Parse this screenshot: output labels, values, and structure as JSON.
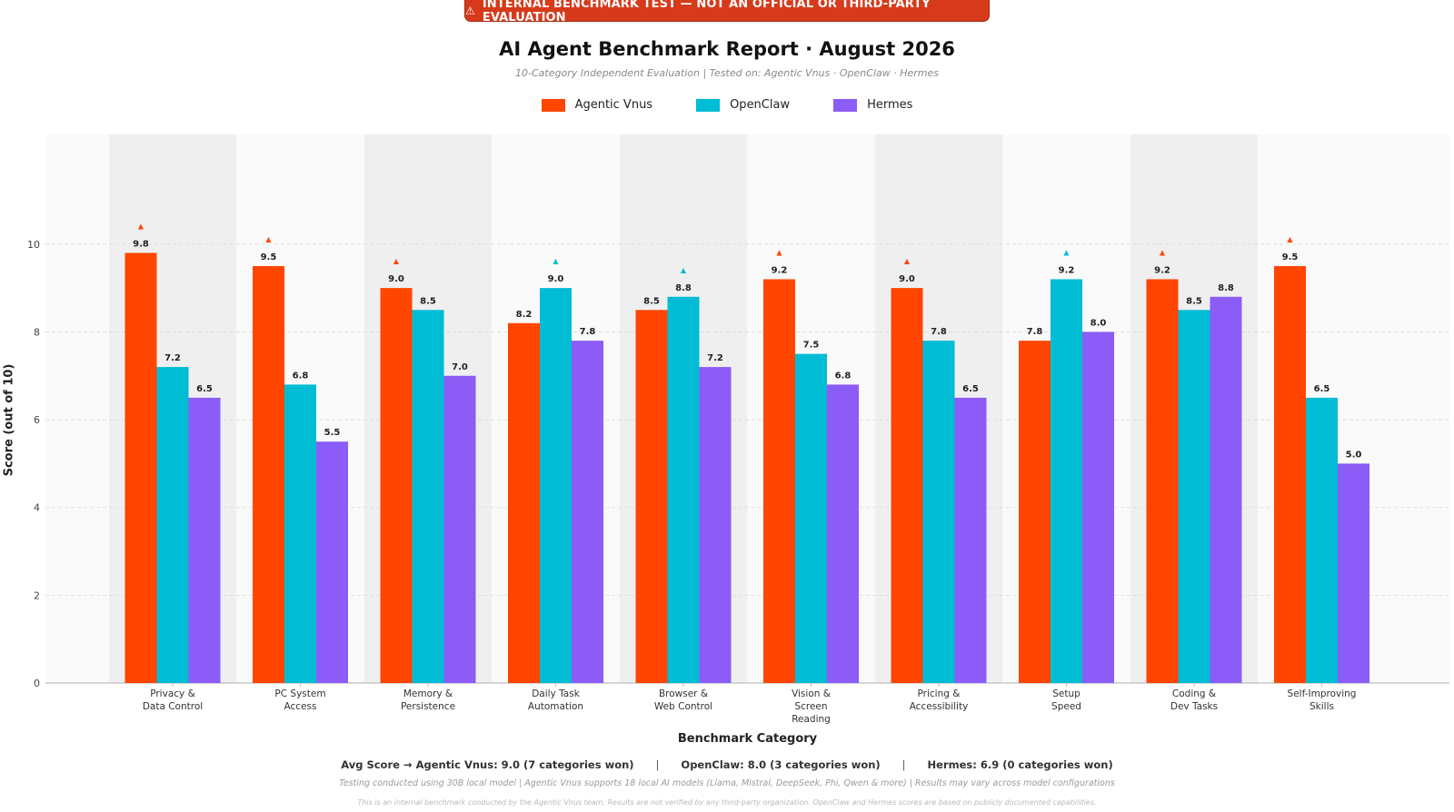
{
  "banner": {
    "icon": "warning-icon",
    "icon_glyph": "⚠",
    "text": "INTERNAL BENCHMARK TEST  —  NOT AN OFFICIAL OR THIRD-PARTY EVALUATION"
  },
  "colors": {
    "Agentic Vnus": "#ff4500",
    "OpenClaw": "#00bcd4",
    "Hermes": "#8b5cf6",
    "banner": "#d63a1b"
  },
  "chart_data": {
    "type": "bar",
    "title": "AI Agent Benchmark Report  ·  August 2026",
    "subtitle": "10-Category Independent Evaluation  |  Tested on: Agentic Vnus  ·  OpenClaw  ·  Hermes",
    "xlabel": "Benchmark Category",
    "ylabel": "Score  (out of 10)",
    "ylim": [
      0,
      12.5
    ],
    "yticks": [
      0,
      2,
      4,
      6,
      8,
      10
    ],
    "grid": true,
    "legend_position": "top-center",
    "categories": [
      "Privacy & Data Control",
      "PC System Access",
      "Memory & Persistence",
      "Daily Task Automation",
      "Browser & Web Control",
      "Vision & Screen Reading",
      "Pricing & Accessibility",
      "Setup Speed",
      "Coding & Dev Tasks",
      "Self-Improving Skills"
    ],
    "category_label_lines": [
      [
        "Privacy &",
        "Data Control"
      ],
      [
        "PC System",
        "Access"
      ],
      [
        "Memory &",
        "Persistence"
      ],
      [
        "Daily Task",
        "Automation"
      ],
      [
        "Browser &",
        "Web Control"
      ],
      [
        "Vision &",
        "Screen",
        "Reading"
      ],
      [
        "Pricing &",
        "Accessibility"
      ],
      [
        "Setup",
        "Speed"
      ],
      [
        "Coding &",
        "Dev Tasks"
      ],
      [
        "Self-Improving",
        "Skills"
      ]
    ],
    "series": [
      {
        "name": "Agentic Vnus",
        "values": [
          9.8,
          9.5,
          9.0,
          8.2,
          8.5,
          9.2,
          9.0,
          7.8,
          9.2,
          9.5
        ]
      },
      {
        "name": "OpenClaw",
        "values": [
          7.2,
          6.8,
          8.5,
          9.0,
          8.8,
          7.5,
          7.8,
          9.2,
          8.5,
          6.5
        ]
      },
      {
        "name": "Hermes",
        "values": [
          6.5,
          5.5,
          7.0,
          7.8,
          7.2,
          6.8,
          6.5,
          8.0,
          8.8,
          5.0
        ]
      }
    ],
    "winner_marker": "▲"
  },
  "summary": {
    "avg_prefix": "Avg Score  →  Agentic Vnus: 9.0  (7 categories won)",
    "openclaw": "OpenClaw: 8.0  (3 categories won)",
    "hermes": "Hermes: 6.9  (0 categories won)",
    "separator": "|"
  },
  "notes": {
    "line1": "Testing conducted using 30B local model  |  Agentic Vnus supports 18 local AI models (Llama, Mistral, DeepSeek, Phi, Qwen & more)  |  Results may vary across model configurations",
    "line2": "This is an internal benchmark conducted by the Agentic Vnus team. Results are not verified by any third-party organization. OpenClaw and Hermes scores are based on publicly documented capabilities."
  }
}
